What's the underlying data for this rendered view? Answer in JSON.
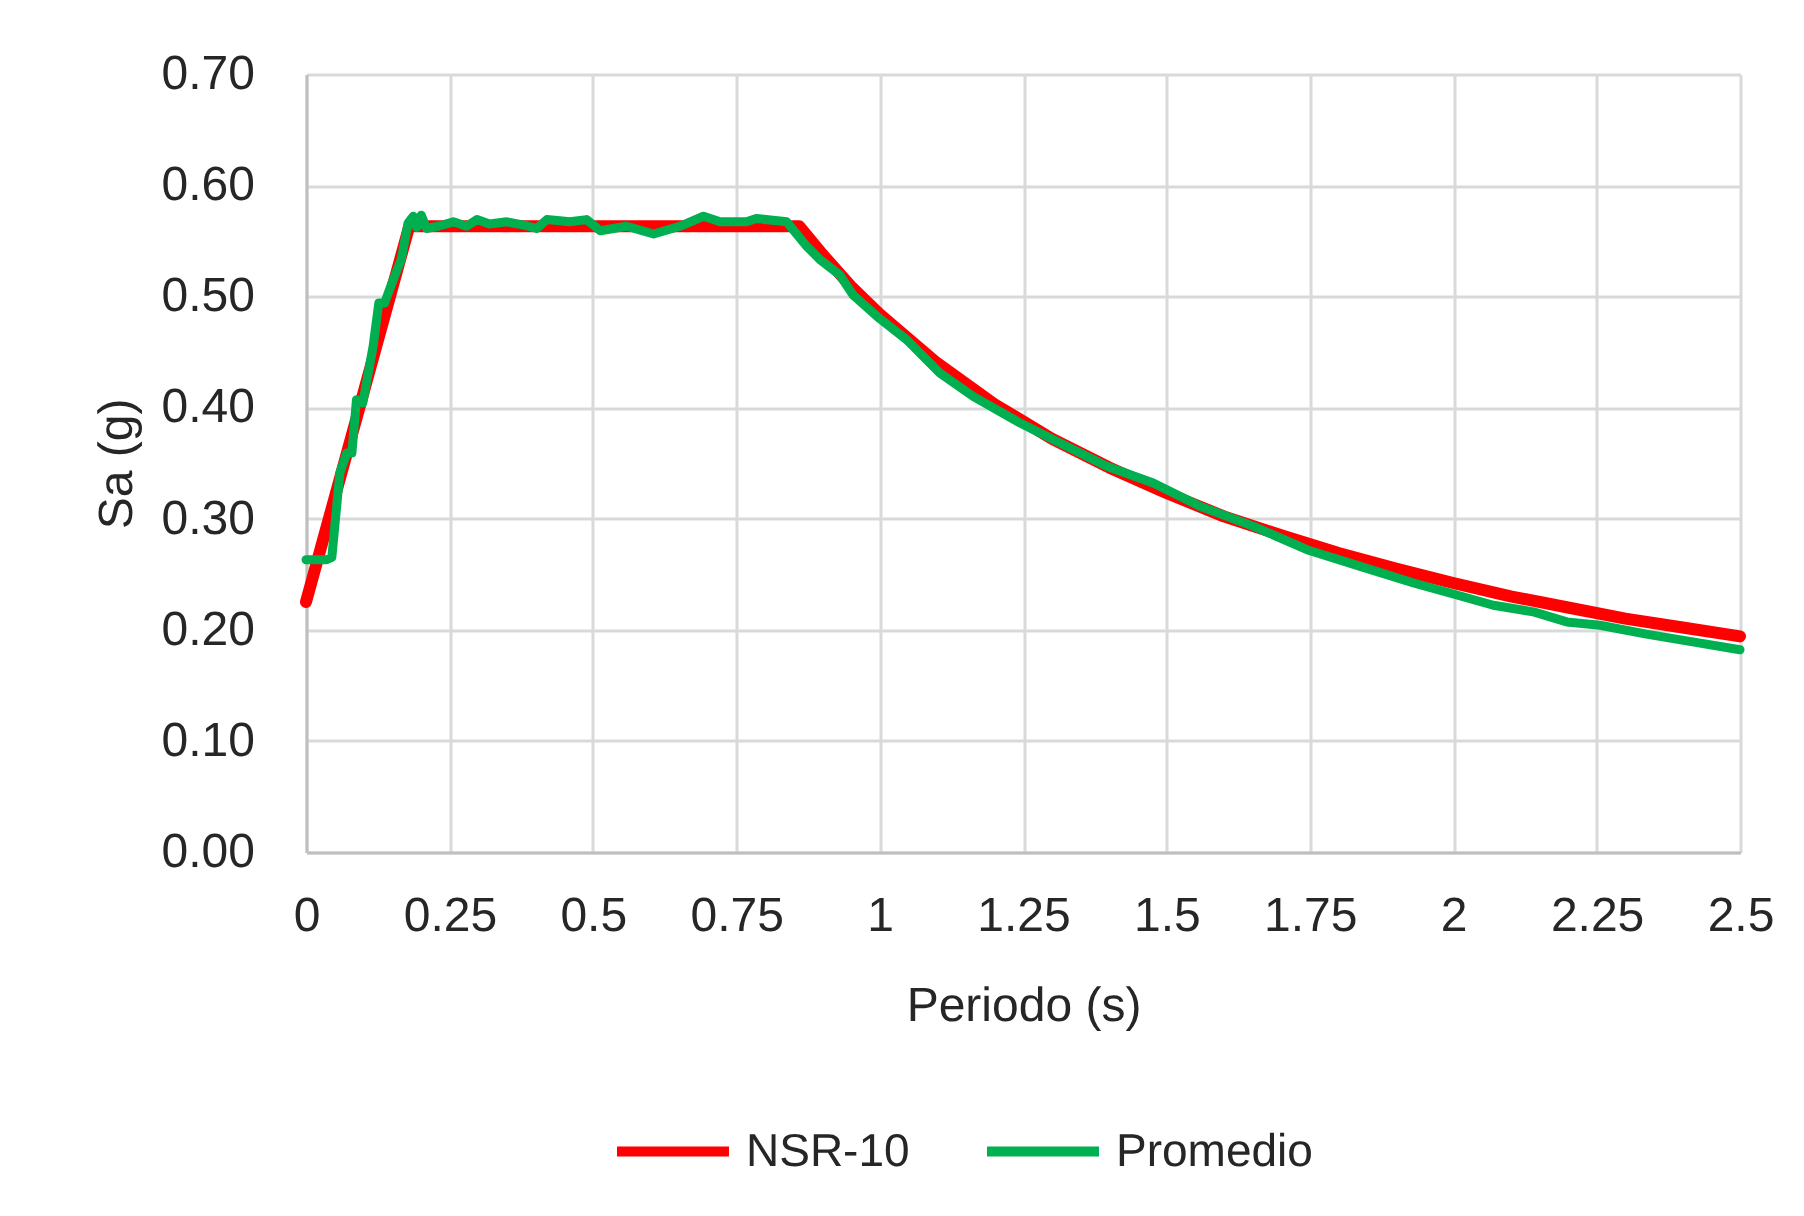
{
  "chart_data": {
    "type": "line",
    "xlabel": "Periodo (s)",
    "ylabel": "Sa (g)",
    "xlim": [
      0,
      2.5
    ],
    "xticks": [
      0,
      0.25,
      0.5,
      0.75,
      1,
      1.25,
      1.5,
      1.75,
      2,
      2.25,
      2.5
    ],
    "ylim": [
      0,
      0.7
    ],
    "yticks": [
      {
        "value": 0,
        "label": "0.00"
      },
      {
        "value": 0.1,
        "label": "0.10"
      },
      {
        "value": 0.2,
        "label": "0.20"
      },
      {
        "value": 0.3,
        "label": "0.30"
      },
      {
        "value": 0.4,
        "label": "0.40"
      },
      {
        "value": 0.5,
        "label": "0.50"
      },
      {
        "value": 0.6,
        "label": "0.60"
      },
      {
        "value": 0.7,
        "label": "0.70"
      }
    ],
    "grid": true,
    "legend": "bottom",
    "marker": "none",
    "line_style": "solid",
    "series": [
      {
        "name": "NSR-10",
        "color": "#ff0000",
        "x": [
          0,
          0.18,
          0.86,
          0.9,
          0.95,
          1.0,
          1.1,
          1.2,
          1.3,
          1.4,
          1.5,
          1.6,
          1.7,
          1.8,
          1.9,
          2.0,
          2.1,
          2.2,
          2.3,
          2.4,
          2.5
        ],
        "values": [
          0.225,
          0.563,
          0.563,
          0.538,
          0.509,
          0.484,
          0.44,
          0.403,
          0.372,
          0.346,
          0.323,
          0.302,
          0.285,
          0.269,
          0.255,
          0.242,
          0.23,
          0.22,
          0.21,
          0.202,
          0.194
        ]
      },
      {
        "name": "Promedio",
        "color": "#00b050",
        "x": [
          0,
          0.036,
          0.045,
          0.059,
          0.071,
          0.08,
          0.088,
          0.099,
          0.117,
          0.127,
          0.137,
          0.152,
          0.166,
          0.178,
          0.187,
          0.193,
          0.201,
          0.21,
          0.23,
          0.257,
          0.28,
          0.298,
          0.32,
          0.35,
          0.38,
          0.402,
          0.42,
          0.46,
          0.489,
          0.513,
          0.559,
          0.606,
          0.652,
          0.693,
          0.722,
          0.768,
          0.785,
          0.838,
          0.873,
          0.896,
          0.931,
          0.954,
          1.0,
          1.047,
          1.105,
          1.163,
          1.245,
          1.326,
          1.396,
          1.477,
          1.559,
          1.652,
          1.745,
          1.838,
          1.931,
          1.994,
          2.07,
          2.14,
          2.198,
          2.256,
          2.337,
          2.407,
          2.5
        ],
        "values": [
          0.263,
          0.263,
          0.265,
          0.341,
          0.359,
          0.359,
          0.407,
          0.404,
          0.455,
          0.494,
          0.494,
          0.515,
          0.533,
          0.566,
          0.572,
          0.562,
          0.573,
          0.561,
          0.563,
          0.567,
          0.563,
          0.569,
          0.565,
          0.567,
          0.564,
          0.561,
          0.569,
          0.567,
          0.569,
          0.559,
          0.563,
          0.556,
          0.563,
          0.572,
          0.567,
          0.567,
          0.57,
          0.567,
          0.545,
          0.533,
          0.519,
          0.501,
          0.48,
          0.461,
          0.431,
          0.41,
          0.386,
          0.365,
          0.347,
          0.332,
          0.311,
          0.293,
          0.272,
          0.257,
          0.242,
          0.233,
          0.222,
          0.216,
          0.207,
          0.204,
          0.196,
          0.19,
          0.182
        ]
      }
    ]
  }
}
